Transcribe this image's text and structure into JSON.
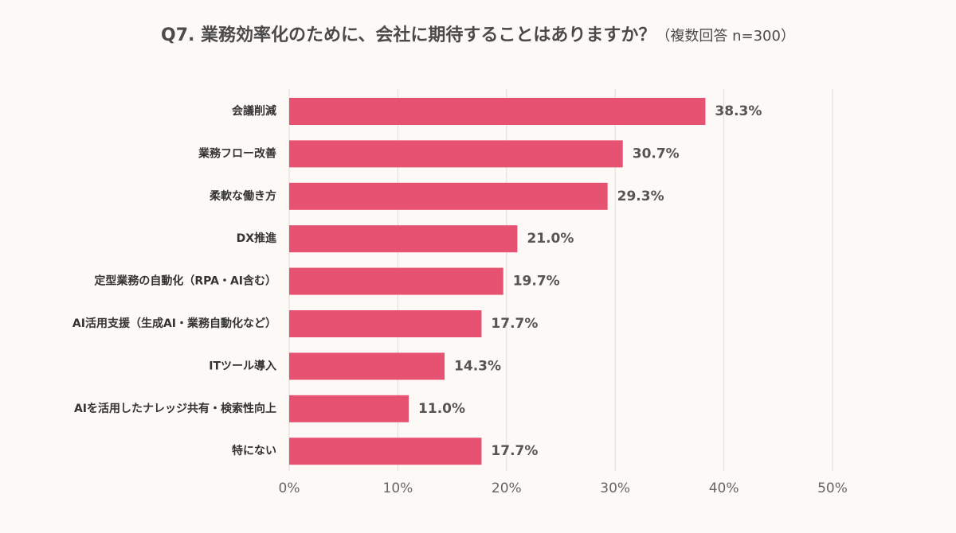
{
  "title": {
    "main": "Q7. 業務効率化のために、会社に期待することはありますか？",
    "sub": "（複数回答 n=300）"
  },
  "colors": {
    "bar": "#e85272",
    "background": "#fdf9f6",
    "grid": "#e2dcd8"
  },
  "chart_data": {
    "type": "bar",
    "orientation": "horizontal",
    "title": "Q7. 業務効率化のために、会社に期待することはありますか？（複数回答 n=300）",
    "categories": [
      "会議削減",
      "業務フロー改善",
      "柔軟な働き方",
      "DX推進",
      "定型業務の自動化（RPA・AI含む）",
      "AI活用支援（生成AI・業務自動化など）",
      "ITツール導入",
      "AIを活用したナレッジ共有・検索性向上",
      "特にない"
    ],
    "values": [
      38.3,
      30.7,
      29.3,
      21.0,
      19.7,
      17.7,
      14.3,
      11.0,
      17.7
    ],
    "value_labels": [
      "38.3%",
      "30.7%",
      "29.3%",
      "21.0%",
      "19.7%",
      "17.7%",
      "14.3%",
      "11.0%",
      "17.7%"
    ],
    "xlim": [
      0,
      50
    ],
    "xticks": [
      0,
      10,
      20,
      30,
      40,
      50
    ],
    "xtick_labels": [
      "0%",
      "10%",
      "20%",
      "30%",
      "40%",
      "50%"
    ],
    "grid": true,
    "legend": "none"
  }
}
